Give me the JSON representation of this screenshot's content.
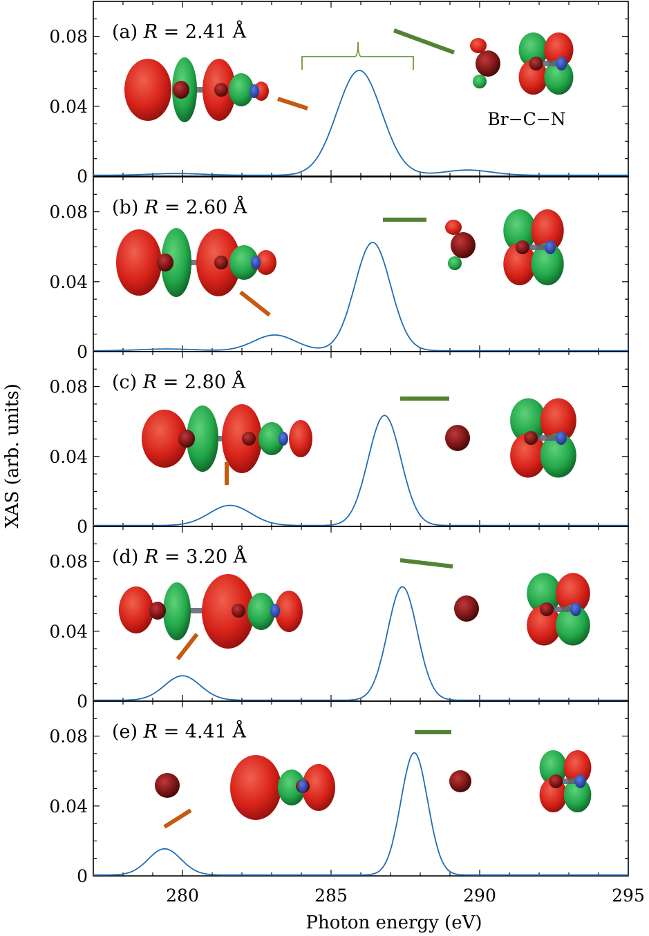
{
  "chart_data": {
    "type": "line",
    "xlabel": "Photon energy (eV)",
    "ylabel": "XAS (arb. units)",
    "xlim": [
      277,
      295
    ],
    "ylim": [
      0,
      0.1
    ],
    "xticks": [
      "280",
      "285",
      "290",
      "295"
    ],
    "yticks": [
      "0",
      "0.04",
      "0.08"
    ],
    "line_color": "#1f6eb5",
    "homo_marker_color": "#c55a11",
    "lumo_marker_color": "#548235",
    "molecule_label": "Br−C−N",
    "panels": [
      {
        "id": "a",
        "label": "(a)",
        "R_value": "2.41",
        "peaks": [
          {
            "center": 279.8,
            "amp": 0.001,
            "width": 0.9
          },
          {
            "center": 285.95,
            "amp": 0.06,
            "width": 0.75
          },
          {
            "center": 289.6,
            "amp": 0.003,
            "width": 0.8
          }
        ]
      },
      {
        "id": "b",
        "label": "(b)",
        "R_value": "2.60",
        "peaks": [
          {
            "center": 279.5,
            "amp": 0.001,
            "width": 0.9
          },
          {
            "center": 283.1,
            "amp": 0.009,
            "width": 0.7
          },
          {
            "center": 286.4,
            "amp": 0.062,
            "width": 0.6
          }
        ]
      },
      {
        "id": "c",
        "label": "(c)",
        "R_value": "2.80",
        "peaks": [
          {
            "center": 281.6,
            "amp": 0.0115,
            "width": 0.7
          },
          {
            "center": 286.8,
            "amp": 0.063,
            "width": 0.55
          }
        ]
      },
      {
        "id": "d",
        "label": "(d)",
        "R_value": "3.20",
        "peaks": [
          {
            "center": 280.0,
            "amp": 0.014,
            "width": 0.6
          },
          {
            "center": 287.4,
            "amp": 0.065,
            "width": 0.5
          }
        ]
      },
      {
        "id": "e",
        "label": "(e)",
        "R_value": "4.41",
        "peaks": [
          {
            "center": 279.4,
            "amp": 0.015,
            "width": 0.55
          },
          {
            "center": 287.8,
            "amp": 0.07,
            "width": 0.45
          }
        ]
      }
    ],
    "R_prefix": "R",
    "R_unit": "Å"
  }
}
